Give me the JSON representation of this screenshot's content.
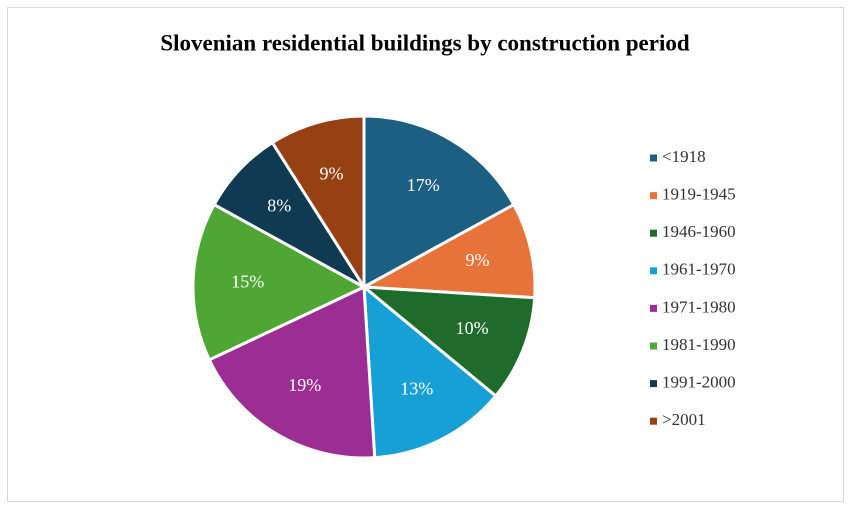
{
  "chart_data": {
    "type": "pie",
    "title": "Slovenian residential buildings by construction period",
    "categories": [
      "<1918",
      "1919-1945",
      "1946-1960",
      "1961-1970",
      "1971-1980",
      "1981-1990",
      "1991-2000",
      ">2001"
    ],
    "values": [
      17,
      9,
      10,
      13,
      19,
      15,
      8,
      9
    ],
    "value_labels": [
      "17%",
      "9%",
      "10%",
      "13%",
      "19%",
      "15%",
      "8%",
      "9%"
    ],
    "colors": [
      "#1b5f82",
      "#e8733a",
      "#1e6b2b",
      "#17a0d5",
      "#9c2d92",
      "#4fa634",
      "#0f3a52",
      "#964014"
    ],
    "legend": "right"
  }
}
